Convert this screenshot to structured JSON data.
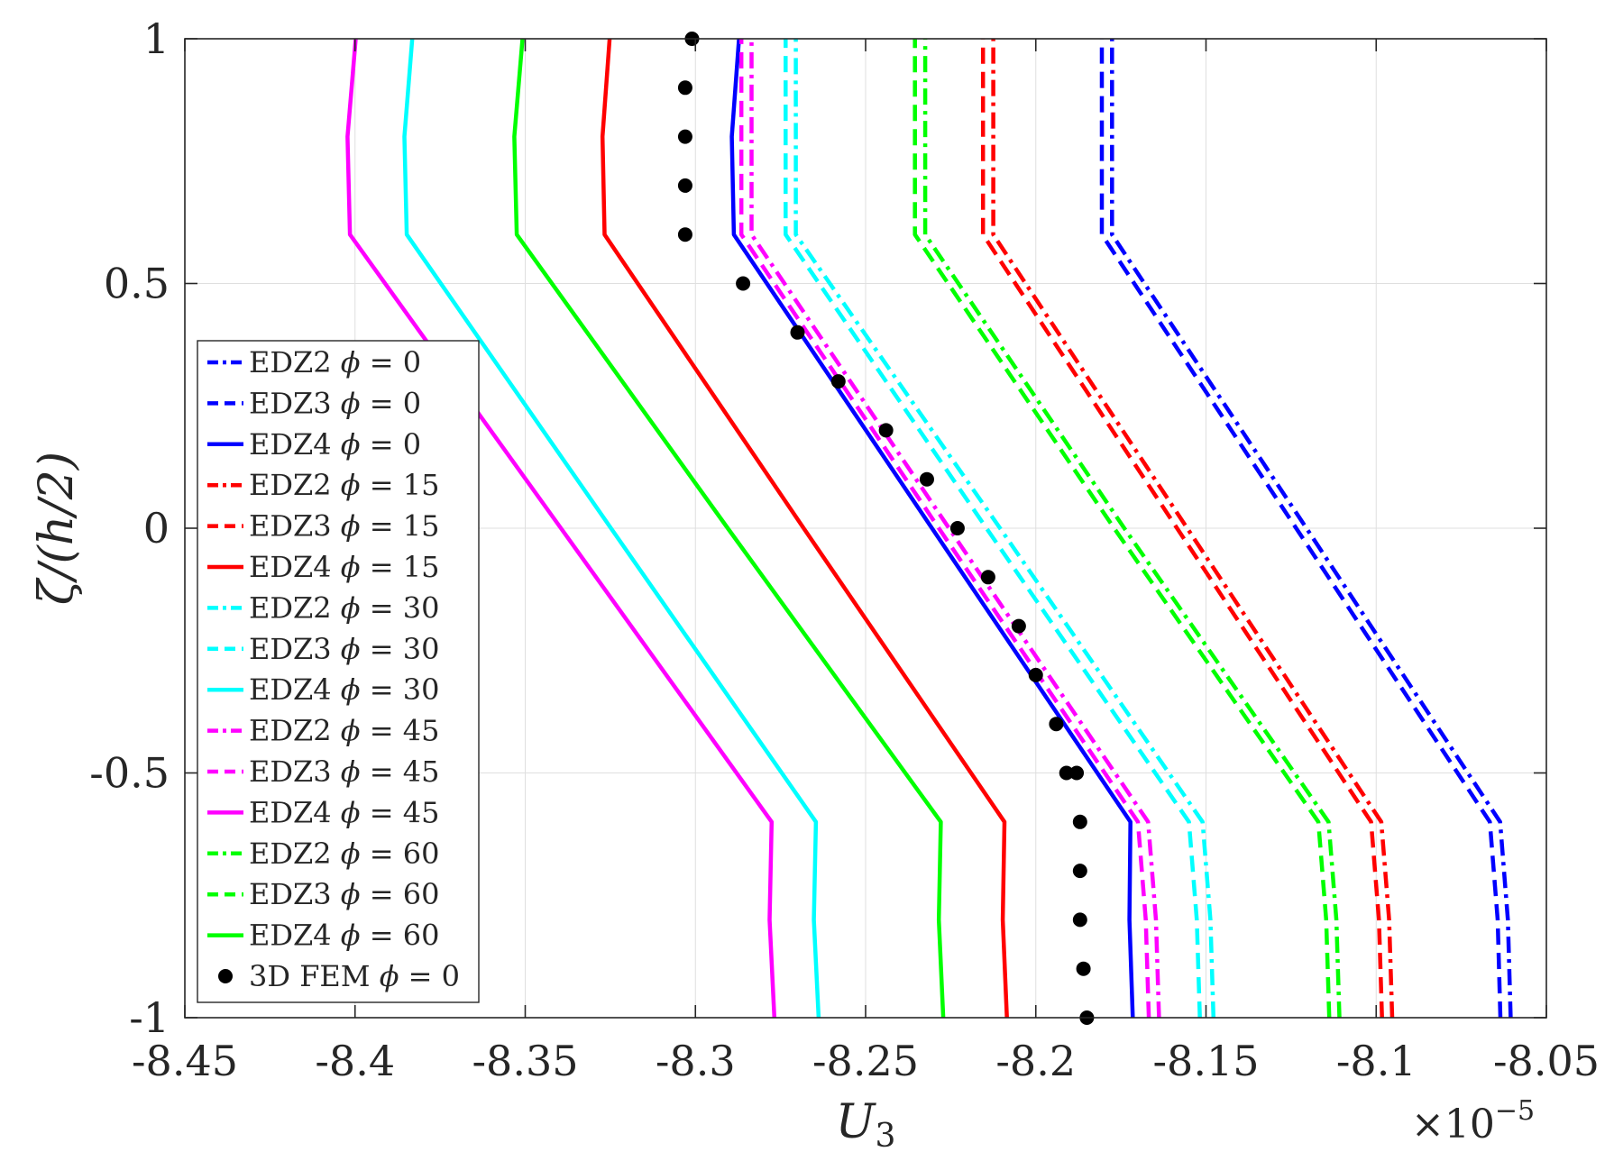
{
  "chart_data": {
    "type": "line",
    "title": "",
    "xlabel": "U",
    "xlabel_subscript": "3",
    "ylabel": "ζ/(h/2)",
    "x_exponent_base": "×10",
    "x_exponent_power": "−5",
    "xlim": [
      -8.45,
      -8.05
    ],
    "ylim": [
      -1,
      1
    ],
    "grid": true,
    "legend_position": "middle-left",
    "x_ticks": [
      -8.45,
      -8.4,
      -8.35,
      -8.3,
      -8.25,
      -8.2,
      -8.15,
      -8.1,
      -8.05
    ],
    "x_tick_labels": [
      "-8.45",
      "-8.4",
      "-8.35",
      "-8.3",
      "-8.25",
      "-8.2",
      "-8.15",
      "-8.1",
      "-8.05"
    ],
    "y_ticks": [
      -1,
      -0.5,
      0,
      0.5,
      1
    ],
    "y_tick_labels": [
      "-1",
      "-0.5",
      "0",
      "0.5",
      "1"
    ],
    "series": [
      {
        "name": "EDZ2 φ = 0",
        "label_prefix": "EDZ2 ",
        "label_symbol": "ϕ",
        "label_suffix": " = 0",
        "color": "#0000ff",
        "style": "dashdot",
        "x": [
          -8.0605,
          -8.0613,
          -8.0636,
          -8.1205,
          -8.1776,
          -8.1776
        ],
        "y": [
          -1,
          -0.8,
          -0.6,
          0,
          0.6,
          1
        ]
      },
      {
        "name": "EDZ3 φ = 0",
        "label_prefix": "EDZ3 ",
        "label_symbol": "ϕ",
        "label_suffix": " = 0",
        "color": "#0000ff",
        "style": "dashed",
        "x": [
          -8.0635,
          -8.0643,
          -8.0666,
          -8.1235,
          -8.1806,
          -8.1806
        ],
        "y": [
          -1,
          -0.8,
          -0.6,
          0,
          0.6,
          1
        ]
      },
      {
        "name": "EDZ4 φ = 0",
        "label_prefix": "EDZ4 ",
        "label_symbol": "ϕ",
        "label_suffix": " = 0",
        "color": "#0000ff",
        "style": "solid",
        "x": [
          -8.1715,
          -8.1725,
          -8.1722,
          -8.2305,
          -8.2887,
          -8.2893,
          -8.2872
        ],
        "y": [
          -1,
          -0.8,
          -0.6,
          0,
          0.6,
          0.8,
          1
        ]
      },
      {
        "name": "EDZ2 φ = 15",
        "label_prefix": "EDZ2 ",
        "label_symbol": "ϕ",
        "label_suffix": " = 15",
        "color": "#ff0000",
        "style": "dashdot",
        "x": [
          -8.0953,
          -8.0962,
          -8.0985,
          -8.1555,
          -8.2125,
          -8.2125
        ],
        "y": [
          -1,
          -0.8,
          -0.6,
          0,
          0.6,
          1
        ]
      },
      {
        "name": "EDZ3 φ = 15",
        "label_prefix": "EDZ3 ",
        "label_symbol": "ϕ",
        "label_suffix": " = 15",
        "color": "#ff0000",
        "style": "dashed",
        "x": [
          -8.0983,
          -8.0992,
          -8.1015,
          -8.1585,
          -8.2155,
          -8.2155
        ],
        "y": [
          -1,
          -0.8,
          -0.6,
          0,
          0.6,
          1
        ]
      },
      {
        "name": "EDZ4 φ = 15",
        "label_prefix": "EDZ4 ",
        "label_symbol": "ϕ",
        "label_suffix": " = 15",
        "color": "#ff0000",
        "style": "solid",
        "x": [
          -8.2085,
          -8.2097,
          -8.2092,
          -8.2682,
          -8.3267,
          -8.3273,
          -8.3252
        ],
        "y": [
          -1,
          -0.8,
          -0.6,
          0,
          0.6,
          0.8,
          1
        ]
      },
      {
        "name": "EDZ2 φ = 30",
        "label_prefix": "EDZ2 ",
        "label_symbol": "ϕ",
        "label_suffix": " = 30",
        "color": "#00ffff",
        "style": "dashdot",
        "x": [
          -8.1478,
          -8.1487,
          -8.151,
          -8.2105,
          -8.2705,
          -8.2705
        ],
        "y": [
          -1,
          -0.8,
          -0.6,
          0,
          0.6,
          1
        ]
      },
      {
        "name": "EDZ3 φ = 30",
        "label_prefix": "EDZ3 ",
        "label_symbol": "ϕ",
        "label_suffix": " = 30",
        "color": "#00ffff",
        "style": "dashed",
        "x": [
          -8.1518,
          -8.1527,
          -8.155,
          -8.2145,
          -8.2735,
          -8.2735
        ],
        "y": [
          -1,
          -0.8,
          -0.6,
          0,
          0.6,
          1
        ]
      },
      {
        "name": "EDZ4 φ = 30",
        "label_prefix": "EDZ4 ",
        "label_symbol": "ϕ",
        "label_suffix": " = 30",
        "color": "#00ffff",
        "style": "solid",
        "x": [
          -8.2638,
          -8.2652,
          -8.2646,
          -8.3248,
          -8.3848,
          -8.3855,
          -8.3832
        ],
        "y": [
          -1,
          -0.8,
          -0.6,
          0,
          0.6,
          0.8,
          1
        ]
      },
      {
        "name": "EDZ2 φ = 45",
        "label_prefix": "EDZ2 ",
        "label_symbol": "ϕ",
        "label_suffix": " = 45",
        "color": "#ff00ff",
        "style": "dashdot",
        "x": [
          -8.1638,
          -8.1647,
          -8.167,
          -8.2255,
          -8.2835,
          -8.2835
        ],
        "y": [
          -1,
          -0.8,
          -0.6,
          0,
          0.6,
          1
        ]
      },
      {
        "name": "EDZ3 φ = 45",
        "label_prefix": "EDZ3 ",
        "label_symbol": "ϕ",
        "label_suffix": " = 45",
        "color": "#ff00ff",
        "style": "dashed",
        "x": [
          -8.1668,
          -8.1677,
          -8.17,
          -8.2285,
          -8.2865,
          -8.2865
        ],
        "y": [
          -1,
          -0.8,
          -0.6,
          0,
          0.6,
          1
        ]
      },
      {
        "name": "EDZ4 φ = 45",
        "label_prefix": "EDZ4 ",
        "label_symbol": "ϕ",
        "label_suffix": " = 45",
        "color": "#ff00ff",
        "style": "solid",
        "x": [
          -8.2768,
          -8.2782,
          -8.2776,
          -8.3395,
          -8.4015,
          -8.4022,
          -8.3998
        ],
        "y": [
          -1,
          -0.8,
          -0.6,
          0,
          0.6,
          0.8,
          1
        ]
      },
      {
        "name": "EDZ2 φ = 60",
        "label_prefix": "EDZ2 ",
        "label_symbol": "ϕ",
        "label_suffix": " = 60",
        "color": "#00ff00",
        "style": "dashdot",
        "x": [
          -8.1108,
          -8.1117,
          -8.114,
          -8.174,
          -8.2325,
          -8.2325
        ],
        "y": [
          -1,
          -0.8,
          -0.6,
          0,
          0.6,
          1
        ]
      },
      {
        "name": "EDZ3 φ = 60",
        "label_prefix": "EDZ3 ",
        "label_symbol": "ϕ",
        "label_suffix": " = 60",
        "color": "#00ff00",
        "style": "dashed",
        "x": [
          -8.1138,
          -8.1147,
          -8.117,
          -8.177,
          -8.2355,
          -8.2355
        ],
        "y": [
          -1,
          -0.8,
          -0.6,
          0,
          0.6,
          1
        ]
      },
      {
        "name": "EDZ4 φ = 60",
        "label_prefix": "EDZ4 ",
        "label_symbol": "ϕ",
        "label_suffix": " = 60",
        "color": "#00ff00",
        "style": "solid",
        "x": [
          -8.2272,
          -8.2285,
          -8.2279,
          -8.2905,
          -8.3525,
          -8.3532,
          -8.3508
        ],
        "y": [
          -1,
          -0.8,
          -0.6,
          0,
          0.6,
          0.8,
          1
        ]
      },
      {
        "name": "3D FEM φ = 0",
        "label_prefix": "3D FEM ",
        "label_symbol": "ϕ",
        "label_suffix": " = 0",
        "color": "#000000",
        "style": "markers",
        "x": [
          -8.185,
          -8.186,
          -8.187,
          -8.187,
          -8.187,
          -8.188,
          -8.191,
          -8.194,
          -8.2,
          -8.205,
          -8.214,
          -8.223,
          -8.232,
          -8.244,
          -8.258,
          -8.27,
          -8.286,
          -8.303,
          -8.303,
          -8.303,
          -8.303,
          -8.301
        ],
        "y": [
          -1,
          -0.9,
          -0.8,
          -0.7,
          -0.6,
          -0.5,
          -0.5,
          -0.4,
          -0.3,
          -0.2,
          -0.1,
          0,
          0.1,
          0.2,
          0.3,
          0.4,
          0.5,
          0.6,
          0.7,
          0.8,
          0.9,
          1
        ]
      }
    ]
  }
}
